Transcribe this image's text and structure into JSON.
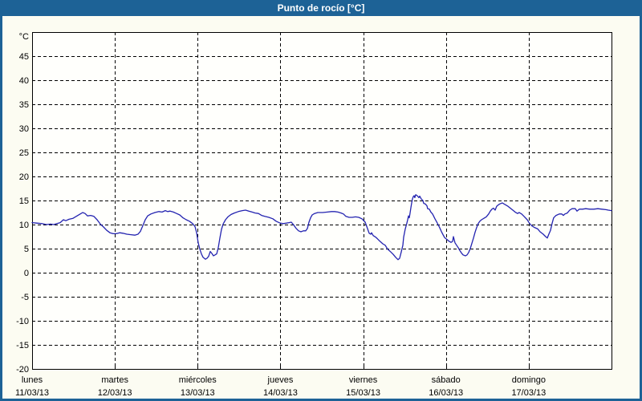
{
  "window": {
    "title": "Punto de rocío [°C]",
    "titlebar_bg": "#1D6296",
    "border_color": "#1D6296",
    "panel_bg": "#FCFCF2",
    "plot_bg": "#FFFFFC"
  },
  "chart_data": {
    "type": "line",
    "title": "Punto de rocío [°C]",
    "unit_label": "°C",
    "ylim": [
      -20,
      50
    ],
    "yticks": [
      45,
      40,
      35,
      30,
      25,
      20,
      15,
      10,
      5,
      0,
      -5,
      -10,
      -15,
      -20
    ],
    "grid": "dashed",
    "legend": "none",
    "line_color": "#2323B0",
    "x_axis": {
      "days": [
        {
          "name": "lunes",
          "date": "11/03/13"
        },
        {
          "name": "martes",
          "date": "12/03/13"
        },
        {
          "name": "miércoles",
          "date": "13/03/13"
        },
        {
          "name": "jueves",
          "date": "14/03/13"
        },
        {
          "name": "viernes",
          "date": "15/03/13"
        },
        {
          "name": "sábado",
          "date": "16/03/13"
        },
        {
          "name": "domingo",
          "date": "17/03/13"
        }
      ]
    },
    "series": [
      {
        "name": "Punto de rocío",
        "x_unit": "days_since_start",
        "points": [
          [
            0,
            10.4
          ],
          [
            0.058,
            10.3
          ],
          [
            0.116,
            10.2
          ],
          [
            0.175,
            10.0
          ],
          [
            0.223,
            10.1
          ],
          [
            0.262,
            10.0
          ],
          [
            0.301,
            10.2
          ],
          [
            0.339,
            10.4
          ],
          [
            0.378,
            11.0
          ],
          [
            0.407,
            10.8
          ],
          [
            0.446,
            11.1
          ],
          [
            0.494,
            11.3
          ],
          [
            0.543,
            11.8
          ],
          [
            0.582,
            12.2
          ],
          [
            0.611,
            12.5
          ],
          [
            0.64,
            12.3
          ],
          [
            0.669,
            11.8
          ],
          [
            0.708,
            11.9
          ],
          [
            0.747,
            11.7
          ],
          [
            0.785,
            11.0
          ],
          [
            0.824,
            10.1
          ],
          [
            0.863,
            9.5
          ],
          [
            0.902,
            8.8
          ],
          [
            0.94,
            8.3
          ],
          [
            0.979,
            8.1
          ],
          [
            1.018,
            8.1
          ],
          [
            1.057,
            8.3
          ],
          [
            1.096,
            8.2
          ],
          [
            1.144,
            8.0
          ],
          [
            1.193,
            7.9
          ],
          [
            1.241,
            7.8
          ],
          [
            1.28,
            8.0
          ],
          [
            1.309,
            8.6
          ],
          [
            1.338,
            9.8
          ],
          [
            1.367,
            11.0
          ],
          [
            1.396,
            11.8
          ],
          [
            1.435,
            12.2
          ],
          [
            1.483,
            12.5
          ],
          [
            1.532,
            12.7
          ],
          [
            1.571,
            12.6
          ],
          [
            1.609,
            12.9
          ],
          [
            1.638,
            12.7
          ],
          [
            1.668,
            12.8
          ],
          [
            1.706,
            12.6
          ],
          [
            1.745,
            12.3
          ],
          [
            1.784,
            12.0
          ],
          [
            1.823,
            11.4
          ],
          [
            1.862,
            11.0
          ],
          [
            1.9,
            10.7
          ],
          [
            1.939,
            10.2
          ],
          [
            1.968,
            9.6
          ],
          [
            1.988,
            8.3
          ],
          [
            2.007,
            6.2
          ],
          [
            2.026,
            4.9
          ],
          [
            2.046,
            3.9
          ],
          [
            2.065,
            3.2
          ],
          [
            2.094,
            2.8
          ],
          [
            2.114,
            3.0
          ],
          [
            2.133,
            3.4
          ],
          [
            2.152,
            4.4
          ],
          [
            2.172,
            4.0
          ],
          [
            2.191,
            3.5
          ],
          [
            2.211,
            3.7
          ],
          [
            2.23,
            3.9
          ],
          [
            2.249,
            5.2
          ],
          [
            2.269,
            7.2
          ],
          [
            2.288,
            9.0
          ],
          [
            2.307,
            10.1
          ],
          [
            2.337,
            11.0
          ],
          [
            2.366,
            11.6
          ],
          [
            2.404,
            12.1
          ],
          [
            2.443,
            12.4
          ],
          [
            2.492,
            12.7
          ],
          [
            2.54,
            12.9
          ],
          [
            2.579,
            13.0
          ],
          [
            2.618,
            12.8
          ],
          [
            2.657,
            12.6
          ],
          [
            2.695,
            12.4
          ],
          [
            2.734,
            12.3
          ],
          [
            2.773,
            11.9
          ],
          [
            2.812,
            11.7
          ],
          [
            2.86,
            11.5
          ],
          [
            2.909,
            11.2
          ],
          [
            2.947,
            10.7
          ],
          [
            2.996,
            10.3
          ],
          [
            3.035,
            10.2
          ],
          [
            3.073,
            10.3
          ],
          [
            3.103,
            10.4
          ],
          [
            3.132,
            10.5
          ],
          [
            3.161,
            9.9
          ],
          [
            3.19,
            9.2
          ],
          [
            3.219,
            8.7
          ],
          [
            3.248,
            8.5
          ],
          [
            3.277,
            8.7
          ],
          [
            3.306,
            8.7
          ],
          [
            3.326,
            9.2
          ],
          [
            3.345,
            10.5
          ],
          [
            3.364,
            11.4
          ],
          [
            3.384,
            12.0
          ],
          [
            3.413,
            12.3
          ],
          [
            3.452,
            12.5
          ],
          [
            3.51,
            12.5
          ],
          [
            3.568,
            12.6
          ],
          [
            3.616,
            12.7
          ],
          [
            3.655,
            12.7
          ],
          [
            3.694,
            12.6
          ],
          [
            3.733,
            12.4
          ],
          [
            3.762,
            12.2
          ],
          [
            3.791,
            11.7
          ],
          [
            3.83,
            11.5
          ],
          [
            3.868,
            11.5
          ],
          [
            3.907,
            11.6
          ],
          [
            3.946,
            11.5
          ],
          [
            3.985,
            11.2
          ],
          [
            4.024,
            10.5
          ],
          [
            4.043,
            9.6
          ],
          [
            4.072,
            8.2
          ],
          [
            4.092,
            8.0
          ],
          [
            4.101,
            8.3
          ],
          [
            4.121,
            7.7
          ],
          [
            4.15,
            7.4
          ],
          [
            4.169,
            7.1
          ],
          [
            4.198,
            6.6
          ],
          [
            4.237,
            6.0
          ],
          [
            4.266,
            5.7
          ],
          [
            4.295,
            4.9
          ],
          [
            4.334,
            4.3
          ],
          [
            4.363,
            3.8
          ],
          [
            4.392,
            3.2
          ],
          [
            4.421,
            2.7
          ],
          [
            4.44,
            3.0
          ],
          [
            4.46,
            4.3
          ],
          [
            4.479,
            5.7
          ],
          [
            4.489,
            7.4
          ],
          [
            4.508,
            9.1
          ],
          [
            4.528,
            10.3
          ],
          [
            4.537,
            11.0
          ],
          [
            4.547,
            11.8
          ],
          [
            4.557,
            11.4
          ],
          [
            4.566,
            12.4
          ],
          [
            4.576,
            13.5
          ],
          [
            4.586,
            14.5
          ],
          [
            4.595,
            15.3
          ],
          [
            4.605,
            15.8
          ],
          [
            4.615,
            16.0
          ],
          [
            4.624,
            15.6
          ],
          [
            4.634,
            16.2
          ],
          [
            4.653,
            16.0
          ],
          [
            4.673,
            15.6
          ],
          [
            4.683,
            15.9
          ],
          [
            4.702,
            15.3
          ],
          [
            4.721,
            15.0
          ],
          [
            4.731,
            14.4
          ],
          [
            4.75,
            14.3
          ],
          [
            4.77,
            13.9
          ],
          [
            4.779,
            13.3
          ],
          [
            4.799,
            13.2
          ],
          [
            4.818,
            12.6
          ],
          [
            4.838,
            12.2
          ],
          [
            4.847,
            11.9
          ],
          [
            4.867,
            11.2
          ],
          [
            4.886,
            10.6
          ],
          [
            4.905,
            10.0
          ],
          [
            4.925,
            9.3
          ],
          [
            4.944,
            8.6
          ],
          [
            4.964,
            7.9
          ],
          [
            4.983,
            7.3
          ],
          [
            5.012,
            6.9
          ],
          [
            5.032,
            6.6
          ],
          [
            5.061,
            6.3
          ],
          [
            5.08,
            6.5
          ],
          [
            5.09,
            7.5
          ],
          [
            5.109,
            6.2
          ],
          [
            5.129,
            5.7
          ],
          [
            5.148,
            5.2
          ],
          [
            5.168,
            4.6
          ],
          [
            5.187,
            4.1
          ],
          [
            5.206,
            3.7
          ],
          [
            5.235,
            3.5
          ],
          [
            5.255,
            3.7
          ],
          [
            5.274,
            4.2
          ],
          [
            5.294,
            5.0
          ],
          [
            5.313,
            6.1
          ],
          [
            5.332,
            7.2
          ],
          [
            5.352,
            8.4
          ],
          [
            5.371,
            9.4
          ],
          [
            5.39,
            10.2
          ],
          [
            5.41,
            10.7
          ],
          [
            5.429,
            11.0
          ],
          [
            5.458,
            11.3
          ],
          [
            5.487,
            11.6
          ],
          [
            5.516,
            12.2
          ],
          [
            5.536,
            12.8
          ],
          [
            5.555,
            13.2
          ],
          [
            5.574,
            13.4
          ],
          [
            5.594,
            13.0
          ],
          [
            5.613,
            13.8
          ],
          [
            5.633,
            14.1
          ],
          [
            5.652,
            14.3
          ],
          [
            5.681,
            14.5
          ],
          [
            5.7,
            14.3
          ],
          [
            5.72,
            14.1
          ],
          [
            5.749,
            13.8
          ],
          [
            5.778,
            13.4
          ],
          [
            5.807,
            13.0
          ],
          [
            5.836,
            12.6
          ],
          [
            5.865,
            12.3
          ],
          [
            5.885,
            12.5
          ],
          [
            5.914,
            12.2
          ],
          [
            5.943,
            11.7
          ],
          [
            5.982,
            11.0
          ],
          [
            6.011,
            10.2
          ],
          [
            6.04,
            9.7
          ],
          [
            6.069,
            9.4
          ],
          [
            6.108,
            9.1
          ],
          [
            6.137,
            8.5
          ],
          [
            6.175,
            8.0
          ],
          [
            6.204,
            7.5
          ],
          [
            6.224,
            7.2
          ],
          [
            6.243,
            8.0
          ],
          [
            6.263,
            8.8
          ],
          [
            6.282,
            10.2
          ],
          [
            6.301,
            11.4
          ],
          [
            6.33,
            11.9
          ],
          [
            6.369,
            12.2
          ],
          [
            6.398,
            12.2
          ],
          [
            6.418,
            11.9
          ],
          [
            6.437,
            12.2
          ],
          [
            6.466,
            12.4
          ],
          [
            6.495,
            13.0
          ],
          [
            6.524,
            13.3
          ],
          [
            6.563,
            13.3
          ],
          [
            6.583,
            12.8
          ],
          [
            6.612,
            13.2
          ],
          [
            6.65,
            13.2
          ],
          [
            6.689,
            13.3
          ],
          [
            6.738,
            13.2
          ],
          [
            6.786,
            13.2
          ],
          [
            6.835,
            13.3
          ],
          [
            6.883,
            13.2
          ],
          [
            6.932,
            13.1
          ],
          [
            6.961,
            13.0
          ],
          [
            7.0,
            12.9
          ]
        ]
      }
    ]
  }
}
